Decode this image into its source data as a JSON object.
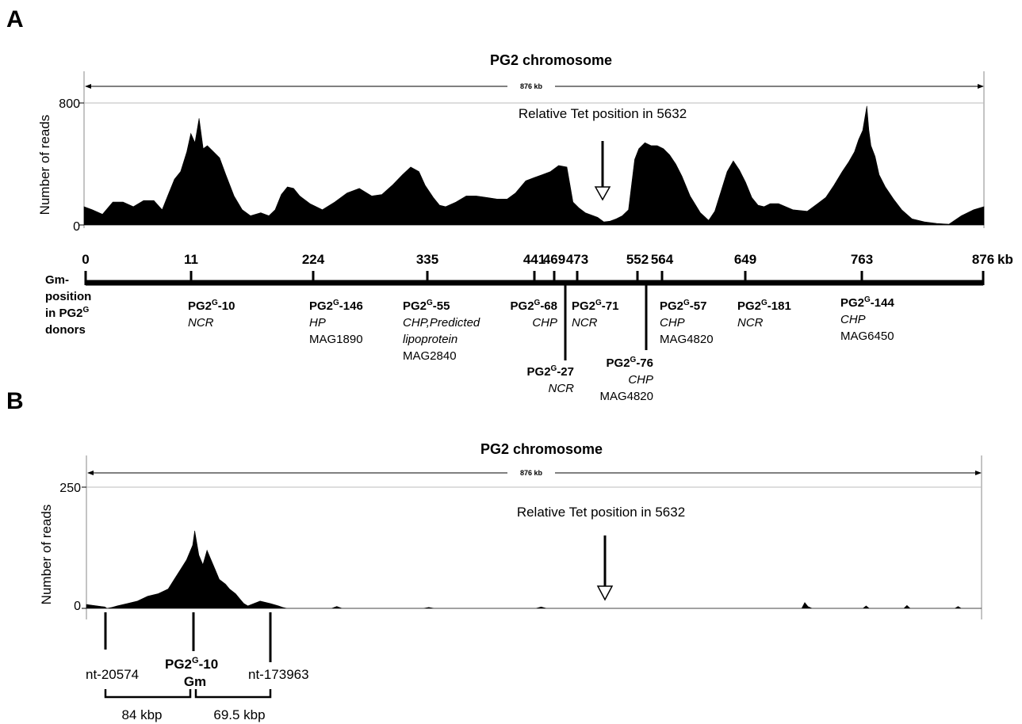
{
  "panels": {
    "a": {
      "letter": "A",
      "title": "PG2 chromosome",
      "span_label": "876 kb",
      "ylabel": "Number of reads",
      "tick_top": "800",
      "tick_zero": "0",
      "tet_label": "Relative Tet position in 5632",
      "unit": "kb",
      "gm_label": [
        "Gm-",
        "position",
        "in PG2",
        "donors"
      ],
      "gm_sup": "G",
      "positions": [
        "0",
        "11",
        "224",
        "335",
        "441",
        "469",
        "473",
        "552",
        "564",
        "649",
        "763",
        "876"
      ],
      "donors": [
        {
          "name": "PG2",
          "sup": "G",
          "suffix": "-10",
          "desc": [
            "NCR"
          ],
          "ref": []
        },
        {
          "name": "PG2",
          "sup": "G",
          "suffix": "-146",
          "desc": [
            "HP"
          ],
          "ref": [
            "MAG1890"
          ]
        },
        {
          "name": "PG2",
          "sup": "G",
          "suffix": "-55",
          "desc": [
            "CHP,Predicted",
            "lipoprotein"
          ],
          "ref": [
            "MAG2840"
          ]
        },
        {
          "name": "PG2",
          "sup": "G",
          "suffix": "-68",
          "desc": [
            "CHP"
          ],
          "ref": []
        },
        {
          "name": "PG2",
          "sup": "G",
          "suffix": "-27",
          "desc": [
            "NCR"
          ],
          "ref": []
        },
        {
          "name": "PG2",
          "sup": "G",
          "suffix": "-71",
          "desc": [
            "NCR"
          ],
          "ref": []
        },
        {
          "name": "PG2",
          "sup": "G",
          "suffix": "-76",
          "desc": [
            "CHP"
          ],
          "ref": [
            "MAG4820"
          ]
        },
        {
          "name": "PG2",
          "sup": "G",
          "suffix": "-57",
          "desc": [
            "CHP"
          ],
          "ref": [
            "MAG4820"
          ]
        },
        {
          "name": "PG2",
          "sup": "G",
          "suffix": "-181",
          "desc": [
            "NCR"
          ],
          "ref": []
        },
        {
          "name": "PG2",
          "sup": "G",
          "suffix": "-144",
          "desc": [
            "CHP"
          ],
          "ref": [
            "MAG6450"
          ]
        }
      ]
    },
    "b": {
      "letter": "B",
      "title": "PG2 chromosome",
      "span_label": "876 kb",
      "ylabel": "Number of reads",
      "tick_top": "250",
      "tick_zero": "0",
      "tet_label": "Relative Tet position in 5632",
      "left_marker": "nt-20574",
      "right_marker": "nt-173963",
      "center_name": "PG2",
      "center_sup": "G",
      "center_suffix": "-10",
      "center_line2": "Gm",
      "left_distance": "84 kbp",
      "right_distance": "69.5 kbp"
    }
  },
  "chart_data": [
    {
      "type": "area",
      "panel": "A",
      "title": "PG2 chromosome",
      "ylabel": "Number of reads",
      "xlim": [
        0,
        876
      ],
      "ylim": [
        0,
        800
      ],
      "x_unit": "kb",
      "tet_position_kb": 510,
      "series": [
        {
          "x": [
            0,
            8,
            18,
            28,
            38,
            48,
            58,
            68,
            76,
            82,
            88,
            94,
            100,
            104,
            108,
            112,
            116,
            120,
            126,
            132,
            138,
            146,
            154,
            162,
            172,
            180,
            186,
            192,
            198,
            204,
            210,
            220,
            232,
            244,
            256,
            268,
            280,
            290,
            300,
            310,
            318,
            326,
            332,
            340,
            346,
            352,
            362,
            372,
            382,
            392,
            402,
            412,
            420,
            430,
            438,
            446,
            454,
            462,
            470,
            476,
            482,
            488,
            494,
            500,
            506,
            512,
            518,
            524,
            530,
            536,
            540,
            546,
            552,
            558,
            564,
            570,
            576,
            582,
            590,
            600,
            608,
            614,
            620,
            626,
            632,
            638,
            644,
            650,
            656,
            662,
            668,
            676,
            690,
            704,
            714,
            722,
            730,
            738,
            744,
            750,
            754,
            758,
            762,
            764,
            766,
            770,
            774,
            780,
            788,
            796,
            806,
            818,
            830,
            842,
            854,
            866,
            876
          ],
          "y": [
            120,
            100,
            70,
            150,
            150,
            120,
            160,
            160,
            100,
            200,
            300,
            350,
            480,
            600,
            540,
            700,
            500,
            520,
            480,
            440,
            330,
            190,
            100,
            60,
            80,
            60,
            100,
            200,
            250,
            240,
            190,
            140,
            100,
            150,
            210,
            240,
            190,
            200,
            260,
            330,
            380,
            350,
            260,
            180,
            130,
            120,
            150,
            190,
            190,
            180,
            170,
            170,
            210,
            290,
            310,
            330,
            350,
            390,
            380,
            150,
            110,
            80,
            65,
            50,
            20,
            25,
            40,
            60,
            100,
            430,
            500,
            540,
            520,
            520,
            500,
            460,
            400,
            320,
            190,
            80,
            30,
            90,
            220,
            350,
            420,
            360,
            280,
            180,
            130,
            120,
            140,
            140,
            100,
            90,
            140,
            180,
            260,
            350,
            410,
            480,
            560,
            620,
            780,
            620,
            520,
            450,
            330,
            250,
            170,
            100,
            40,
            20,
            10,
            5,
            60,
            100,
            120
          ]
        }
      ]
    },
    {
      "type": "area",
      "panel": "B",
      "title": "PG2 chromosome",
      "ylabel": "Number of reads",
      "xlim": [
        0,
        876
      ],
      "ylim": [
        0,
        250
      ],
      "x_unit": "kb",
      "tet_position_kb": 510,
      "series": [
        {
          "x": [
            0,
            18,
            20,
            25,
            30,
            40,
            50,
            60,
            70,
            80,
            86,
            92,
            98,
            104,
            106,
            110,
            114,
            118,
            122,
            126,
            130,
            136,
            140,
            146,
            150,
            154,
            158,
            170,
            180,
            188,
            192,
            196,
            200,
            240,
            245,
            250,
            330,
            335,
            340,
            440,
            445,
            450,
            700,
            703,
            706,
            710,
            760,
            763,
            766,
            800,
            803,
            806,
            850,
            853,
            856,
            876
          ],
          "y": [
            8,
            3,
            0,
            2,
            5,
            10,
            15,
            25,
            30,
            40,
            60,
            80,
            100,
            130,
            160,
            110,
            90,
            120,
            100,
            80,
            60,
            50,
            40,
            30,
            20,
            10,
            5,
            15,
            10,
            5,
            2,
            0,
            0,
            0,
            4,
            0,
            0,
            2,
            0,
            0,
            3,
            0,
            0,
            12,
            4,
            0,
            0,
            5,
            0,
            0,
            6,
            0,
            0,
            4,
            0,
            0
          ]
        }
      ]
    }
  ]
}
